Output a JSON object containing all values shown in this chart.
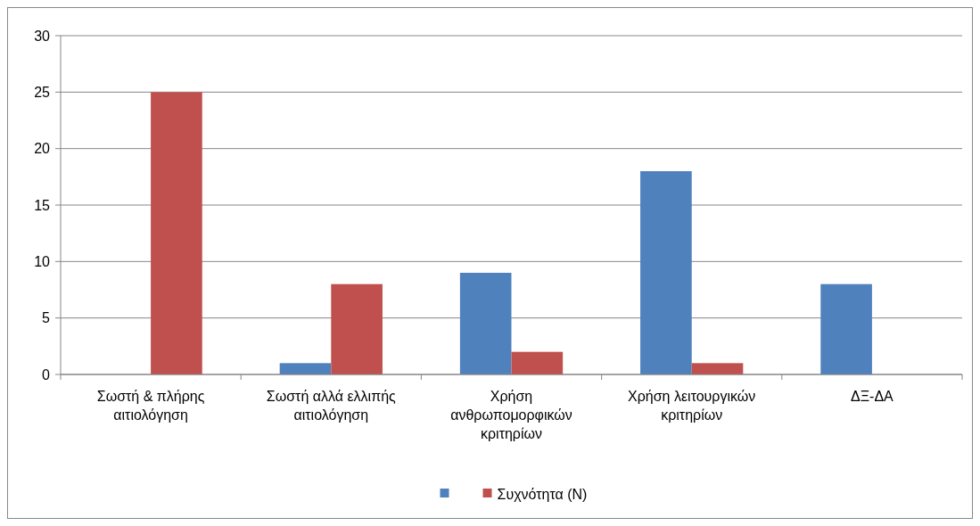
{
  "chart_data": {
    "type": "bar",
    "categories": [
      "Σωστή & πλήρης αιτιολόγηση",
      "Σωστή αλλά ελλιπής αιτιολόγηση",
      "Χρήση ανθρωπομορφικών κριτηρίων",
      "Χρήση λειτουργικών κριτηρίων",
      "ΔΞ-ΔΑ"
    ],
    "series": [
      {
        "color": "#4f81bd",
        "values": [
          0,
          1,
          9,
          18,
          8
        ]
      },
      {
        "name": "Συχνότητα (Ν)",
        "color": "#c0504d",
        "values": [
          25,
          8,
          2,
          1,
          0
        ]
      }
    ],
    "ylim": [
      0,
      30
    ],
    "yticks": [
      0,
      5,
      10,
      15,
      20,
      25,
      30
    ],
    "grid": "y",
    "legend": "bottom"
  }
}
